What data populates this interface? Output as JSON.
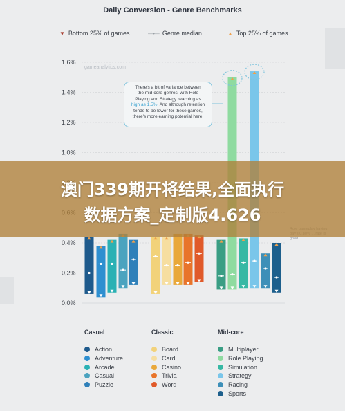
{
  "title": "Daily Conversion - Genre Benchmarks",
  "legend": {
    "bottom": "Bottom 25% of games",
    "median": "Genre median",
    "top": "Top 25% of games"
  },
  "watermark": "gameanalytics.com",
  "callout": {
    "line1": "There's a bit of variance between",
    "line2": "the mid-core genres, with Role",
    "line3": "Playing and Strategy reaching as",
    "line4_highlight": "high as 1.5%.",
    "line4_rest": " And although retention",
    "line5": "tends to be lower for these games,",
    "line6": "there's more earning potential here."
  },
  "note_right": "Role gameplay having pay's 0.80% ... rate is good",
  "banner": {
    "line1": "澳门339期开将结果,全面执行",
    "line2": "数据方案_定制版4.626"
  },
  "groups": [
    {
      "title": "Casual",
      "items": [
        "Action",
        "Adventure",
        "Arcade",
        "Casual",
        "Puzzle"
      ]
    },
    {
      "title": "Classic",
      "items": [
        "Board",
        "Card",
        "Casino",
        "Trivia",
        "Word"
      ]
    },
    {
      "title": "Mid-core",
      "items": [
        "Multiplayer",
        "Role Playing",
        "Simulation",
        "Strategy",
        "Racing",
        "Sports"
      ]
    }
  ],
  "colors": {
    "Action": "#1e5a8c",
    "Adventure": "#2e8fd0",
    "Arcade": "#2ab1b4",
    "Casual": "#4ba3bf",
    "Puzzle": "#2f80b9",
    "Board": "#f2d27a",
    "Card": "#f6dea0",
    "Casino": "#e9a83a",
    "Trivia": "#e8742a",
    "Word": "#e05a2a",
    "Multiplayer": "#3a9e84",
    "Role Playing": "#8fdba0",
    "Simulation": "#36b8a4",
    "Strategy": "#7ac6ea",
    "Racing": "#3d8fb8",
    "Sports": "#1d5f8c",
    "bottom_marker": "#a63a2c",
    "median_marker": "#9aa0a6",
    "top_marker": "#f0a04b"
  },
  "chart_data": {
    "type": "bar",
    "title": "Daily Conversion - Genre Benchmarks",
    "xlabel": "",
    "ylabel": "",
    "ylim": [
      0,
      1.6
    ],
    "yticks": [
      "0,0%",
      "0,2%",
      "0,4%",
      "0,6%",
      "0,8%",
      "1,0%",
      "1,2%",
      "1,4%",
      "1,6%"
    ],
    "grid": true,
    "legend_position": "top",
    "categories": [
      "Action",
      "Adventure",
      "Arcade",
      "Casual",
      "Puzzle",
      "Board",
      "Card",
      "Casino",
      "Trivia",
      "Word",
      "Multiplayer",
      "Role Playing",
      "Simulation",
      "Strategy",
      "Racing",
      "Sports"
    ],
    "series": [
      {
        "name": "Bottom 25% of games",
        "values": [
          0.06,
          0.04,
          0.07,
          0.1,
          0.12,
          0.06,
          0.12,
          0.12,
          0.12,
          0.14,
          0.09,
          0.09,
          0.1,
          0.1,
          0.1,
          0.07
        ]
      },
      {
        "name": "Genre median",
        "values": [
          0.2,
          0.26,
          0.26,
          0.22,
          0.29,
          0.31,
          0.25,
          0.25,
          0.27,
          0.33,
          0.18,
          0.19,
          0.27,
          0.28,
          0.23,
          0.17
        ]
      },
      {
        "name": "Top 25% of games",
        "values": [
          0.44,
          0.38,
          0.42,
          0.46,
          0.42,
          0.44,
          0.44,
          0.46,
          0.46,
          0.45,
          0.42,
          1.5,
          0.43,
          1.54,
          0.33,
          0.4
        ]
      }
    ]
  }
}
